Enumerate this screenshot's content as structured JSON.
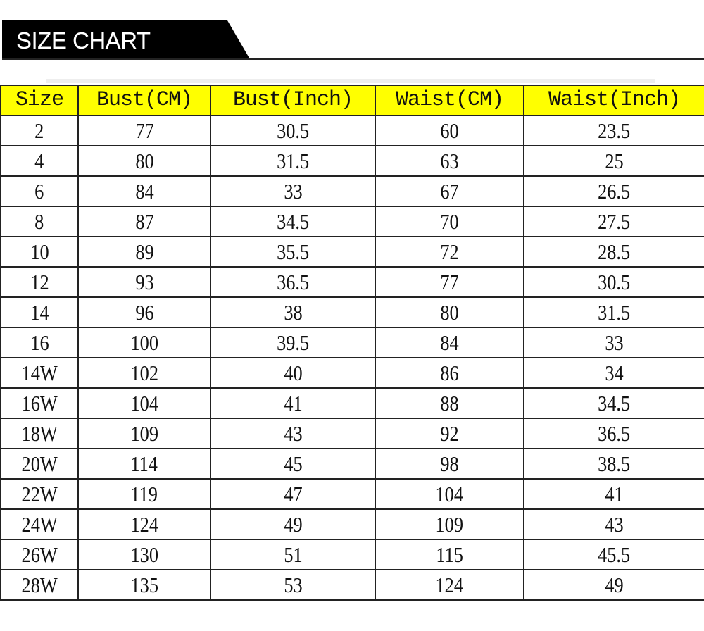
{
  "title": "SIZE CHART",
  "colors": {
    "header_bg": "#ffff00",
    "banner_bg": "#000000"
  },
  "table": {
    "headers": [
      "Size",
      "Bust(CM)",
      "Bust(Inch)",
      "Waist(CM)",
      "Waist(Inch)"
    ],
    "rows": [
      [
        "2",
        "77",
        "30.5",
        "60",
        "23.5"
      ],
      [
        "4",
        "80",
        "31.5",
        "63",
        "25"
      ],
      [
        "6",
        "84",
        "33",
        "67",
        "26.5"
      ],
      [
        "8",
        "87",
        "34.5",
        "70",
        "27.5"
      ],
      [
        "10",
        "89",
        "35.5",
        "72",
        "28.5"
      ],
      [
        "12",
        "93",
        "36.5",
        "77",
        "30.5"
      ],
      [
        "14",
        "96",
        "38",
        "80",
        "31.5"
      ],
      [
        "16",
        "100",
        "39.5",
        "84",
        "33"
      ],
      [
        "14W",
        "102",
        "40",
        "86",
        "34"
      ],
      [
        "16W",
        "104",
        "41",
        "88",
        "34.5"
      ],
      [
        "18W",
        "109",
        "43",
        "92",
        "36.5"
      ],
      [
        "20W",
        "114",
        "45",
        "98",
        "38.5"
      ],
      [
        "22W",
        "119",
        "47",
        "104",
        "41"
      ],
      [
        "24W",
        "124",
        "49",
        "109",
        "43"
      ],
      [
        "26W",
        "130",
        "51",
        "115",
        "45.5"
      ],
      [
        "28W",
        "135",
        "53",
        "124",
        "49"
      ]
    ]
  }
}
